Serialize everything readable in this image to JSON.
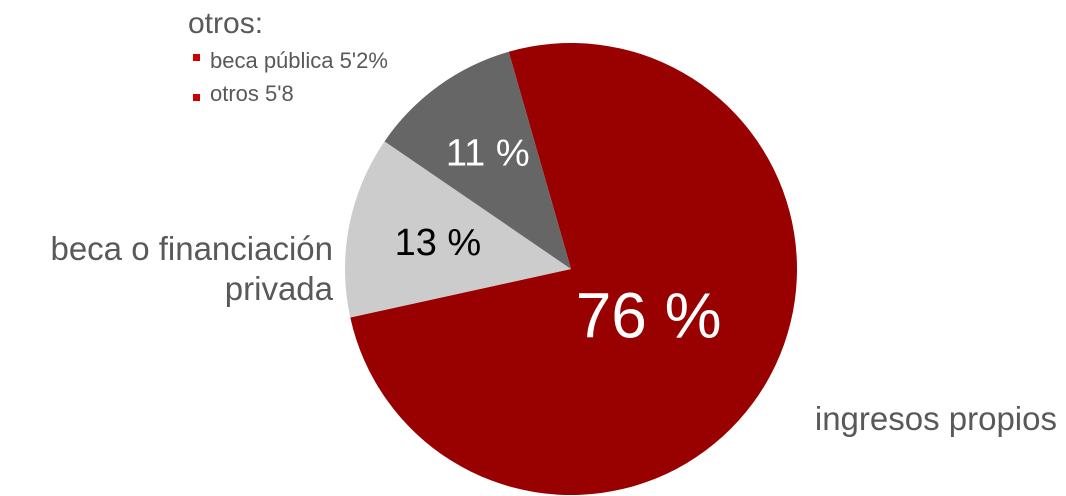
{
  "chart_data": {
    "type": "pie",
    "slices": [
      {
        "label": "ingresos propios",
        "value": 76,
        "value_label": "76 %",
        "color": "#990000",
        "text_color": "#ffffff"
      },
      {
        "label": "beca o financiación privada",
        "value": 13,
        "value_label": "13 %",
        "color": "#cccccc",
        "text_color": "#000000"
      },
      {
        "label": "otros",
        "value": 11,
        "value_label": "11 %",
        "color": "#666666",
        "text_color": "#ffffff"
      }
    ],
    "external_labels": {
      "ingresos_propios": [
        "ingresos propios"
      ],
      "beca_privada": [
        "beca o financiación",
        "privada"
      ]
    },
    "otros_note": {
      "title": "otros:",
      "bullet_color": "#cc0000",
      "items": [
        "beca pública 5'2%",
        "otros 5'8"
      ]
    },
    "legend": "none",
    "grid": false
  }
}
